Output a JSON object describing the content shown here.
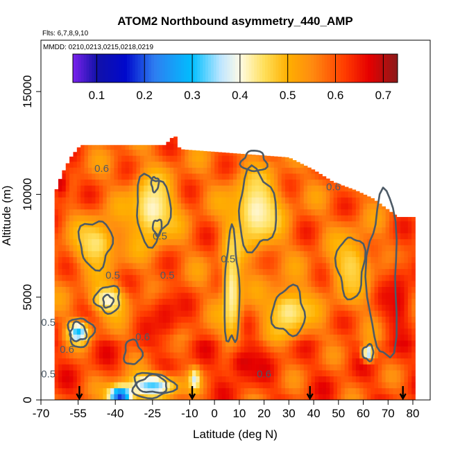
{
  "chart_data": {
    "type": "heatmap",
    "title": "ATOM2 Northbound asymmetry_440_AMP",
    "flights_label": "Flts: 6,7,8,9,10",
    "dates_label": "MMDD: 0210,0213,0215,0218,0219",
    "xlabel": "Latitude (deg N)",
    "ylabel": "Altitude (m)",
    "xlim": [
      -70,
      87
    ],
    "ylim": [
      0,
      17500
    ],
    "x_ticks": [
      -70,
      -55,
      -40,
      -25,
      -10,
      0,
      10,
      20,
      30,
      40,
      50,
      60,
      70,
      80
    ],
    "x_tick_labels": [
      "-70",
      "-55",
      "-40",
      "-25",
      "-10",
      "0",
      "10",
      "20",
      "30",
      "40",
      "50",
      "60",
      "70",
      "80"
    ],
    "y_ticks": [
      0,
      5000,
      10000,
      15000
    ],
    "y_tick_labels": [
      "0",
      "5000",
      "10000",
      "15000"
    ],
    "colorbar": {
      "range": [
        0.05,
        0.73
      ],
      "ticks": [
        0.1,
        0.2,
        0.3,
        0.4,
        0.5,
        0.6,
        0.7
      ],
      "tick_labels": [
        "0.1",
        "0.2",
        "0.3",
        "0.4",
        "0.5",
        "0.6",
        "0.7"
      ],
      "stops": [
        {
          "v": 0.05,
          "color": "#7a22ee"
        },
        {
          "v": 0.1,
          "color": "#1212a8"
        },
        {
          "v": 0.16,
          "color": "#0008cc"
        },
        {
          "v": 0.22,
          "color": "#2e7df0"
        },
        {
          "v": 0.3,
          "color": "#00bfff"
        },
        {
          "v": 0.36,
          "color": "#bfe6ff"
        },
        {
          "v": 0.4,
          "color": "#fffbe6"
        },
        {
          "v": 0.45,
          "color": "#ffe05c"
        },
        {
          "v": 0.5,
          "color": "#ffb000"
        },
        {
          "v": 0.55,
          "color": "#ff8c10"
        },
        {
          "v": 0.62,
          "color": "#ff3b00"
        },
        {
          "v": 0.67,
          "color": "#e60000"
        },
        {
          "v": 0.73,
          "color": "#8b1a1a"
        }
      ]
    },
    "profile_markers_lat": [
      -54.5,
      -9,
      38.5,
      76
    ],
    "contour_labels": [
      {
        "text": "0.6",
        "lat": -45.5,
        "alt": 11100
      },
      {
        "text": "0.6",
        "lat": 48,
        "alt": 10200
      },
      {
        "text": "0.5",
        "lat": -22,
        "alt": 7800
      },
      {
        "text": "0.5",
        "lat": -41,
        "alt": 5900
      },
      {
        "text": "0.5",
        "lat": -19,
        "alt": 5900
      },
      {
        "text": "0.5",
        "lat": 5.5,
        "alt": 6700
      },
      {
        "text": "0.5",
        "lat": -67,
        "alt": 3600
      },
      {
        "text": "0.6",
        "lat": -29,
        "alt": 2900
      },
      {
        "text": "0.6",
        "lat": -59.5,
        "alt": 2300
      },
      {
        "text": "0.6",
        "lat": 20,
        "alt": 1100
      },
      {
        "text": "0.5",
        "lat": -67,
        "alt": 1100
      }
    ],
    "envelope": [
      {
        "lat": -64.5,
        "top": 10000
      },
      {
        "lat": -61.5,
        "top": 11000
      },
      {
        "lat": -58,
        "top": 11800
      },
      {
        "lat": -54,
        "top": 12400
      },
      {
        "lat": -20,
        "top": 12400
      },
      {
        "lat": -16,
        "top": 12900
      },
      {
        "lat": -14,
        "top": 12200
      },
      {
        "lat": 30,
        "top": 11800
      },
      {
        "lat": 40,
        "top": 11200
      },
      {
        "lat": 48,
        "top": 10600
      },
      {
        "lat": 57,
        "top": 10200
      },
      {
        "lat": 64,
        "top": 9800
      },
      {
        "lat": 74,
        "top": 8900
      },
      {
        "lat": 81,
        "top": 8900
      }
    ],
    "regions": [
      {
        "lat": -48,
        "alt": 7600,
        "r_lat": 9,
        "r_alt": 1200,
        "value": 0.44
      },
      {
        "lat": -25,
        "alt": 9300,
        "r_lat": 9,
        "r_alt": 1700,
        "value": 0.41
      },
      {
        "lat": 17,
        "alt": 9200,
        "r_lat": 10,
        "r_alt": 1900,
        "value": 0.41
      },
      {
        "lat": 7,
        "alt": 5300,
        "r_lat": 4,
        "r_alt": 2800,
        "value": 0.42
      },
      {
        "lat": 30,
        "alt": 4300,
        "r_lat": 9,
        "r_alt": 1200,
        "value": 0.43
      },
      {
        "lat": -43,
        "alt": 4900,
        "r_lat": 7,
        "r_alt": 700,
        "value": 0.4
      },
      {
        "lat": -55,
        "alt": 3300,
        "r_lat": 4,
        "r_alt": 500,
        "value": 0.3
      },
      {
        "lat": -25,
        "alt": 700,
        "r_lat": 10,
        "r_alt": 600,
        "value": 0.32
      },
      {
        "lat": -38,
        "alt": 200,
        "r_lat": 5,
        "r_alt": 500,
        "value": 0.18
      },
      {
        "lat": 62,
        "alt": 2300,
        "r_lat": 2.5,
        "r_alt": 400,
        "value": 0.33
      },
      {
        "lat": 55,
        "alt": 6500,
        "r_lat": 8,
        "r_alt": 1600,
        "value": 0.46
      },
      {
        "lat": -8,
        "alt": 1000,
        "r_lat": 2,
        "r_alt": 500,
        "value": 0.37
      },
      {
        "lat": 12,
        "alt": 1800,
        "r_lat": 8,
        "r_alt": 900,
        "value": 0.68
      },
      {
        "lat": -20,
        "alt": 4100,
        "r_lat": 7,
        "r_alt": 1300,
        "value": 0.66
      },
      {
        "lat": 74,
        "alt": 4800,
        "r_lat": 6,
        "r_alt": 2000,
        "value": 0.67
      },
      {
        "lat": -62,
        "alt": 10500,
        "r_lat": 4,
        "r_alt": 900,
        "value": 0.68
      }
    ],
    "contours": [
      {
        "level": 0.5,
        "lat": -48,
        "alt": 7600,
        "r_lat": 6.5,
        "r_alt": 1150
      },
      {
        "level": 0.5,
        "lat": -25,
        "alt": 9300,
        "r_lat": 6.8,
        "r_alt": 1650
      },
      {
        "level": 0.5,
        "lat": 17,
        "alt": 9200,
        "r_lat": 7.5,
        "r_alt": 1900
      },
      {
        "level": 0.5,
        "lat": 7,
        "alt": 5300,
        "r_lat": 3,
        "r_alt": 2700
      },
      {
        "level": 0.5,
        "lat": 30,
        "alt": 4300,
        "r_lat": 6.5,
        "r_alt": 1150
      },
      {
        "level": 0.5,
        "lat": -43,
        "alt": 4900,
        "r_lat": 5,
        "r_alt": 650
      },
      {
        "level": 0.5,
        "lat": 55,
        "alt": 6500,
        "r_lat": 5.5,
        "r_alt": 1500
      },
      {
        "level": 0.5,
        "lat": -54,
        "alt": 3300,
        "r_lat": 5,
        "r_alt": 700
      },
      {
        "level": 0.5,
        "lat": -25,
        "alt": 700,
        "r_lat": 8.5,
        "r_alt": 600
      },
      {
        "level": 0.4,
        "lat": -55,
        "alt": 3300,
        "r_lat": 3.2,
        "r_alt": 450
      },
      {
        "level": 0.4,
        "lat": -25,
        "alt": 750,
        "r_lat": 6,
        "r_alt": 420
      },
      {
        "level": 0.4,
        "lat": 62,
        "alt": 2300,
        "r_lat": 2.2,
        "r_alt": 380
      },
      {
        "level": 0.4,
        "lat": -23,
        "alt": 8400,
        "r_lat": 1.8,
        "r_alt": 380
      },
      {
        "level": 0.4,
        "lat": -24,
        "alt": 10500,
        "r_lat": 1.5,
        "r_alt": 350
      },
      {
        "level": 0.4,
        "lat": -43,
        "alt": 4800,
        "r_lat": 2,
        "r_alt": 300
      },
      {
        "level": 0.6,
        "lat": -33,
        "alt": 2300,
        "r_lat": 3.5,
        "r_alt": 600
      },
      {
        "level": 0.6,
        "lat": 16,
        "alt": 11600,
        "r_lat": 5,
        "r_alt": 500
      },
      {
        "level": 0.6,
        "lat": 68,
        "alt": 6000,
        "r_lat": 6,
        "r_alt": 4000
      }
    ]
  }
}
